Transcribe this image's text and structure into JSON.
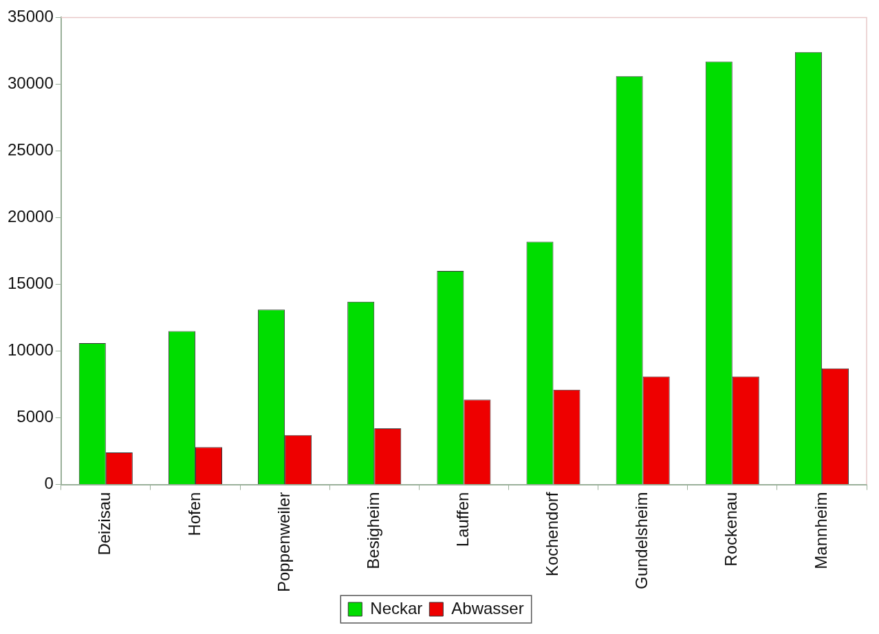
{
  "chart_data": {
    "type": "bar",
    "categories": [
      "Deizisau",
      "Hofen",
      "Poppenweiler",
      "Besigheim",
      "Lauffen",
      "Kochendorf",
      "Gundelsheim",
      "Rockenau",
      "Mannheim"
    ],
    "series": [
      {
        "name": "Neckar",
        "color": "#00dd00",
        "values": [
          10600,
          11500,
          13100,
          13700,
          16000,
          18200,
          30600,
          31700,
          32400
        ]
      },
      {
        "name": "Abwasser",
        "color": "#ee0000",
        "values": [
          2400,
          2800,
          3700,
          4200,
          6350,
          7100,
          8100,
          8100,
          8700
        ]
      }
    ],
    "ylim": [
      0,
      35000
    ],
    "yticks": [
      0,
      5000,
      10000,
      15000,
      20000,
      25000,
      30000,
      35000
    ],
    "grid": false,
    "legend": "bottom"
  }
}
